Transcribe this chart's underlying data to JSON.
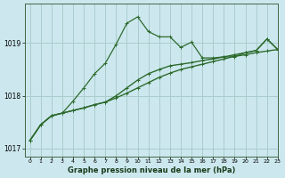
{
  "title": "Graphe pression niveau de la mer (hPa)",
  "background_color": "#cce8ee",
  "grid_color": "#aacccc",
  "line_color": "#2d6a2d",
  "xlim": [
    -0.5,
    23
  ],
  "ylim": [
    1016.85,
    1019.75
  ],
  "yticks": [
    1017,
    1018,
    1019
  ],
  "xticks": [
    0,
    1,
    2,
    3,
    4,
    5,
    6,
    7,
    8,
    9,
    10,
    11,
    12,
    13,
    14,
    15,
    16,
    17,
    18,
    19,
    20,
    21,
    22,
    23
  ],
  "series1_x": [
    0,
    1,
    2,
    3,
    4,
    5,
    6,
    7,
    8,
    9,
    10,
    11,
    12,
    13,
    14,
    15,
    16,
    17,
    18,
    19,
    20,
    21,
    22,
    23
  ],
  "series1_y": [
    1017.15,
    1017.45,
    1017.62,
    1017.67,
    1017.72,
    1017.77,
    1017.83,
    1017.88,
    1017.96,
    1018.05,
    1018.15,
    1018.25,
    1018.35,
    1018.43,
    1018.5,
    1018.55,
    1018.6,
    1018.65,
    1018.7,
    1018.75,
    1018.78,
    1018.82,
    1018.85,
    1018.88
  ],
  "series2_x": [
    0,
    1,
    2,
    3,
    4,
    5,
    6,
    7,
    8,
    9,
    10,
    11,
    12,
    13,
    14,
    15,
    16,
    17,
    18,
    19,
    20,
    21,
    22,
    23
  ],
  "series2_y": [
    1017.15,
    1017.45,
    1017.62,
    1017.67,
    1017.72,
    1017.77,
    1017.83,
    1017.88,
    1018.0,
    1018.15,
    1018.3,
    1018.42,
    1018.5,
    1018.57,
    1018.6,
    1018.63,
    1018.67,
    1018.7,
    1018.74,
    1018.78,
    1018.82,
    1018.86,
    1019.08,
    1018.88
  ],
  "series3_x": [
    0,
    1,
    2,
    3,
    4,
    5,
    6,
    7,
    8,
    9,
    10,
    11,
    12,
    13,
    14,
    15,
    16,
    17,
    18,
    19,
    20,
    21,
    22,
    23
  ],
  "series3_y": [
    1017.15,
    1017.45,
    1017.62,
    1017.67,
    1017.9,
    1018.15,
    1018.42,
    1018.62,
    1018.98,
    1019.38,
    1019.5,
    1019.22,
    1019.12,
    1019.12,
    1018.92,
    1019.02,
    1018.72,
    1018.72,
    1018.74,
    1018.74,
    1018.82,
    1018.86,
    1019.08,
    1018.88
  ]
}
